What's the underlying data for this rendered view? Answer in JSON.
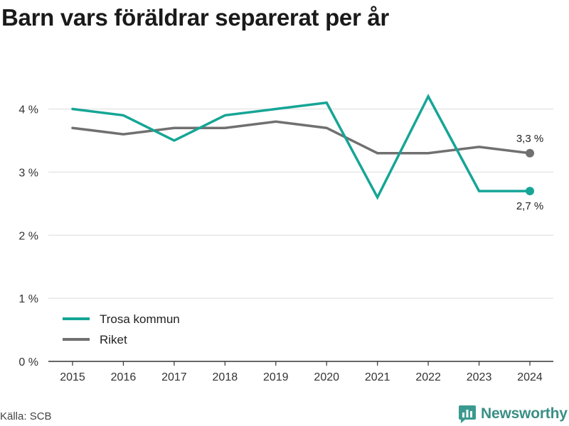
{
  "title": "Barn vars föräldrar separerat per år",
  "source": "Källa: SCB",
  "brand": {
    "name": "Newsworthy",
    "icon": "newsworthy-logo-icon",
    "color": "#3a9a8f"
  },
  "chart_data": {
    "type": "line",
    "title": "Barn vars föräldrar separerat per år",
    "xlabel": "",
    "ylabel": "",
    "x": [
      "2015",
      "2016",
      "2017",
      "2018",
      "2019",
      "2020",
      "2021",
      "2022",
      "2023",
      "2024"
    ],
    "y_ticks": [
      {
        "value": 0,
        "label": "0 %"
      },
      {
        "value": 1,
        "label": "1 %"
      },
      {
        "value": 2,
        "label": "2 %"
      },
      {
        "value": 3,
        "label": "3 %"
      },
      {
        "value": 4,
        "label": "4 %"
      }
    ],
    "ylim": [
      0,
      4.4
    ],
    "grid": true,
    "legend_position": "bottom-left",
    "series": [
      {
        "name": "Trosa kommun",
        "color": "#16a596",
        "values": [
          4.0,
          3.9,
          3.5,
          3.9,
          4.0,
          4.1,
          2.6,
          4.2,
          2.7,
          2.7
        ],
        "end_label": "2,7 %",
        "end_label_position": "below"
      },
      {
        "name": "Riket",
        "color": "#707070",
        "values": [
          3.7,
          3.6,
          3.7,
          3.7,
          3.8,
          3.7,
          3.3,
          3.3,
          3.4,
          3.3
        ],
        "end_label": "3,3 %",
        "end_label_position": "above"
      }
    ]
  }
}
